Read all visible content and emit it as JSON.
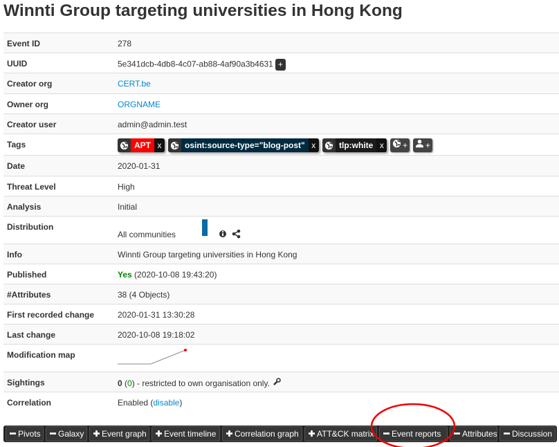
{
  "header": {
    "title": "Winnti Group targeting universities in Hong Kong"
  },
  "table": {
    "rows": [
      {
        "label": "Event ID",
        "value": "278"
      },
      {
        "label": "UUID",
        "value": "5e341dcb-4db8-4c07-ab88-4af90a3b4631",
        "button": "+"
      },
      {
        "label": "Creator org",
        "link": "CERT.be"
      },
      {
        "label": "Owner org",
        "link": "ORGNAME"
      },
      {
        "label": "Creator user",
        "value": "admin@admin.test"
      },
      {
        "label": "Tags",
        "tags": [
          {
            "name": "APT",
            "color": "#ff0000",
            "remove": "x"
          },
          {
            "name": "osint:source-type=\"blog-post\"",
            "color": "#002a3f",
            "remove": "x"
          },
          {
            "name": "tlp:white",
            "color": "#1a1a1a",
            "remove": "x"
          }
        ],
        "add_buttons": [
          "+",
          "+"
        ]
      },
      {
        "label": "Date",
        "value": "2020-01-31"
      },
      {
        "label": "Threat Level",
        "value": "High"
      },
      {
        "label": "Analysis",
        "value": "Initial"
      },
      {
        "label": "Distribution",
        "value": "All communities"
      },
      {
        "label": "Info",
        "value": "Winnti Group targeting universities in Hong Kong"
      },
      {
        "label": "Published",
        "status": "Yes",
        "value": "(2020-10-08 19:43:20)"
      },
      {
        "label": "#Attributes",
        "value": "38 (4 Objects)"
      },
      {
        "label": "First recorded change",
        "value": "2020-01-31 13:30:28"
      },
      {
        "label": "Last change",
        "value": "2020-10-08 19:18:02"
      },
      {
        "label": "Modification map"
      },
      {
        "label": "Sightings",
        "count": "0",
        "prefix": "(",
        "link": "0",
        "suffix": ") - restricted to own organisation only."
      },
      {
        "label": "Correlation",
        "value": "Enabled (",
        "link": "disable",
        "suffix": ")"
      }
    ]
  },
  "tabs": [
    "Pivots",
    "Galaxy",
    "Event graph",
    "Event timeline",
    "Correlation graph",
    "ATT&CK matrix",
    "Event reports",
    "Attributes",
    "Discussion"
  ]
}
